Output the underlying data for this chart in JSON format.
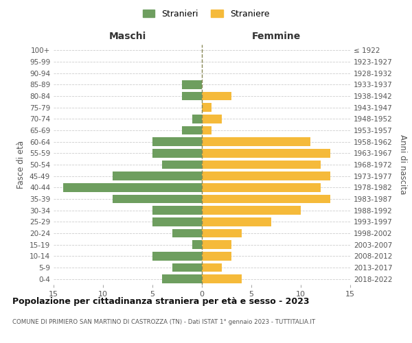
{
  "age_groups": [
    "0-4",
    "5-9",
    "10-14",
    "15-19",
    "20-24",
    "25-29",
    "30-34",
    "35-39",
    "40-44",
    "45-49",
    "50-54",
    "55-59",
    "60-64",
    "65-69",
    "70-74",
    "75-79",
    "80-84",
    "85-89",
    "90-94",
    "95-99",
    "100+"
  ],
  "birth_years": [
    "2018-2022",
    "2013-2017",
    "2008-2012",
    "2003-2007",
    "1998-2002",
    "1993-1997",
    "1988-1992",
    "1983-1987",
    "1978-1982",
    "1973-1977",
    "1968-1972",
    "1963-1967",
    "1958-1962",
    "1953-1957",
    "1948-1952",
    "1943-1947",
    "1938-1942",
    "1933-1937",
    "1928-1932",
    "1923-1927",
    "≤ 1922"
  ],
  "males": [
    4,
    3,
    5,
    1,
    3,
    5,
    5,
    9,
    14,
    9,
    4,
    5,
    5,
    2,
    1,
    0,
    2,
    2,
    0,
    0,
    0
  ],
  "females": [
    4,
    2,
    3,
    3,
    4,
    7,
    10,
    13,
    12,
    13,
    12,
    13,
    11,
    1,
    2,
    1,
    3,
    0,
    0,
    0,
    0
  ],
  "male_color": "#6e9e5f",
  "female_color": "#f5ba3a",
  "title": "Popolazione per cittadinanza straniera per età e sesso - 2023",
  "subtitle": "COMUNE DI PRIMIERO SAN MARTINO DI CASTROZZA (TN) - Dati ISTAT 1° gennaio 2023 - TUTTITALIA.IT",
  "xlabel_left": "Maschi",
  "xlabel_right": "Femmine",
  "ylabel_left": "Fasce di età",
  "ylabel_right": "Anni di nascita",
  "legend_males": "Stranieri",
  "legend_females": "Straniere",
  "xlim": 15,
  "background_color": "#ffffff",
  "grid_color": "#cccccc",
  "dashed_line_color": "#888855"
}
